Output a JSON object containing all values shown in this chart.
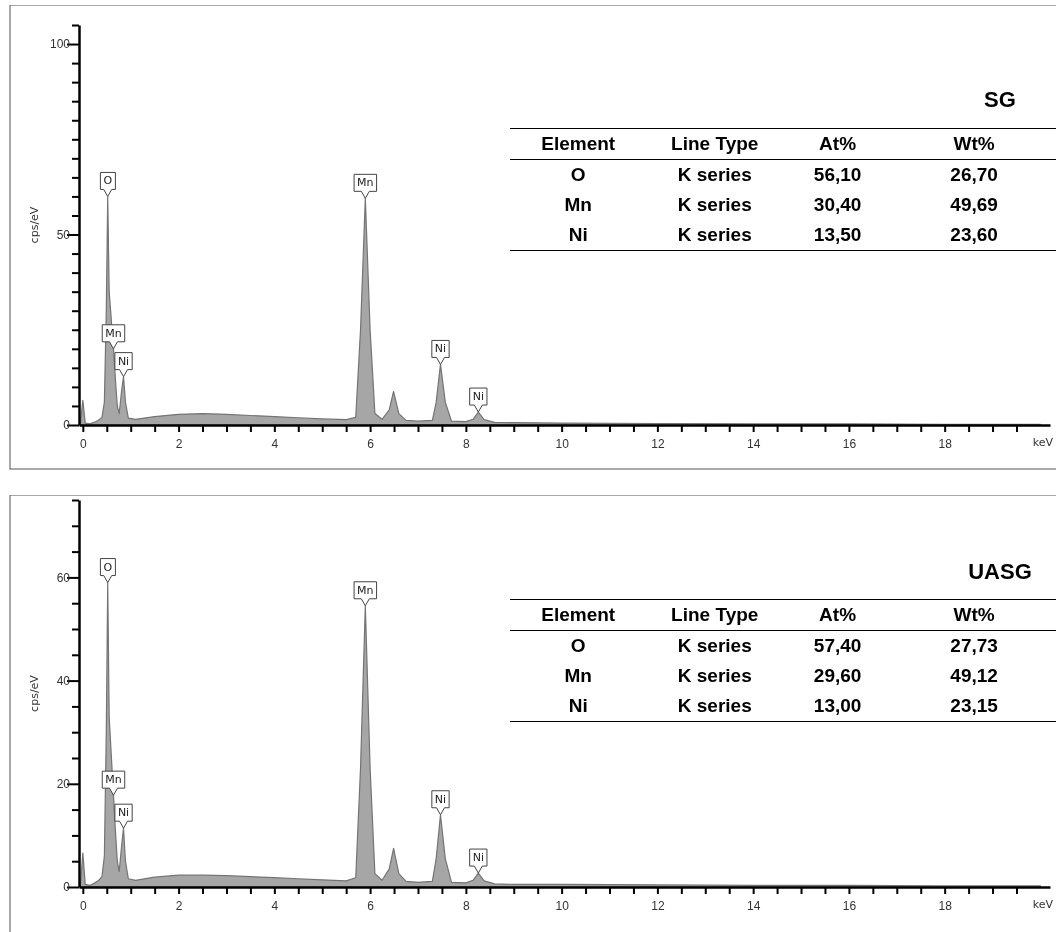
{
  "chart_data": [
    {
      "type": "area",
      "title": "SG",
      "ylabel": "cps/eV",
      "xlabel": "keV",
      "xlim": [
        -0.08,
        20.2
      ],
      "ylim": [
        0,
        105
      ],
      "xticks": [
        0,
        {
          "value": 0.5,
          "label": null
        },
        {
          "value": 1,
          "label": null
        },
        {
          "value": 1.5,
          "label": null
        },
        2,
        {
          "value": 2.5,
          "label": null
        },
        {
          "value": 3,
          "label": null
        },
        {
          "value": 3.5,
          "label": null
        },
        4,
        {
          "value": 4.5,
          "label": null
        },
        {
          "value": 5,
          "label": null
        },
        {
          "value": 5.5,
          "label": null
        },
        6,
        {
          "value": 6.5,
          "label": null
        },
        {
          "value": 7,
          "label": null
        },
        {
          "value": 7.5,
          "label": null
        },
        8,
        {
          "value": 8.5,
          "label": null
        },
        {
          "value": 9,
          "label": null
        },
        {
          "value": 9.5,
          "label": null
        },
        10,
        {
          "value": 10.5,
          "label": null
        },
        {
          "value": 11,
          "label": null
        },
        {
          "value": 11.5,
          "label": null
        },
        12,
        {
          "value": 12.5,
          "label": null
        },
        {
          "value": 13,
          "label": null
        },
        {
          "value": 13.5,
          "label": null
        },
        14,
        {
          "value": 14.5,
          "label": null
        },
        {
          "value": 15,
          "label": null
        },
        {
          "value": 15.5,
          "label": null
        },
        16,
        {
          "value": 16.5,
          "label": null
        },
        {
          "value": 17,
          "label": null
        },
        {
          "value": 17.5,
          "label": null
        },
        18,
        {
          "value": 18.5,
          "label": null
        },
        {
          "value": 19,
          "label": null
        },
        {
          "value": 19.5,
          "label": null
        }
      ],
      "yticks": [
        0,
        {
          "value": 5,
          "label": null
        },
        {
          "value": 10,
          "label": null
        },
        {
          "value": 15,
          "label": null
        },
        {
          "value": 20,
          "label": null
        },
        {
          "value": 25,
          "label": null
        },
        {
          "value": 30,
          "label": null
        },
        {
          "value": 35,
          "label": null
        },
        {
          "value": 40,
          "label": null
        },
        {
          "value": 45,
          "label": null
        },
        50,
        {
          "value": 55,
          "label": null
        },
        {
          "value": 60,
          "label": null
        },
        {
          "value": 65,
          "label": null
        },
        {
          "value": 70,
          "label": null
        },
        {
          "value": 75,
          "label": null
        },
        {
          "value": 80,
          "label": null
        },
        {
          "value": 85,
          "label": null
        },
        {
          "value": 90,
          "label": null
        },
        {
          "value": 95,
          "label": null
        },
        100,
        {
          "value": 105,
          "label": null
        }
      ],
      "grid": false,
      "series": [
        {
          "color": "#a6a6a6",
          "x": [
            -0.05,
            0,
            0.05,
            0.15,
            0.25,
            0.32,
            0.4,
            0.45,
            0.49,
            0.52,
            0.55,
            0.64,
            0.68,
            0.72,
            0.76,
            0.81,
            0.85,
            0.89,
            0.95,
            1.1,
            1.5,
            2,
            2.5,
            3,
            3.5,
            4,
            4.5,
            5,
            5.5,
            5.7,
            5.8,
            5.9,
            6,
            6.1,
            6.25,
            6.4,
            6.49,
            6.6,
            6.75,
            7,
            7.3,
            7.38,
            7.47,
            7.57,
            7.7,
            8,
            8.15,
            8.26,
            8.38,
            8.6,
            9,
            10,
            12,
            14,
            16,
            18,
            20
          ],
          "values": [
            0.3,
            6.5,
            0.5,
            0.3,
            0.8,
            1.2,
            2,
            6,
            30,
            60,
            35,
            20,
            12,
            5,
            3,
            9,
            12.7,
            6,
            1.8,
            1.5,
            2.2,
            2.8,
            3,
            2.8,
            2.5,
            2.2,
            1.9,
            1.6,
            1.4,
            2,
            25,
            59.5,
            25,
            3,
            1.5,
            4,
            8.8,
            3,
            1.2,
            1,
            1.2,
            6,
            15.9,
            6,
            1,
            0.9,
            1.5,
            3.4,
            1.4,
            0.7,
            0.6,
            0.5,
            0.4,
            0.3,
            0.3,
            0.2,
            0.2
          ]
        }
      ],
      "annotations": [
        {
          "text": "O",
          "x": 0.52,
          "y": 60
        },
        {
          "text": "Mn",
          "x": 0.64,
          "y": 20
        },
        {
          "text": "Ni",
          "x": 0.85,
          "y": 12.7
        },
        {
          "text": "Mn",
          "x": 5.9,
          "y": 59.5
        },
        {
          "text": "Ni",
          "x": 7.47,
          "y": 15.9
        },
        {
          "text": "Ni",
          "x": 8.26,
          "y": 3.4
        },
        "Element",
        "Line Type",
        "At%",
        "Wt%",
        "O",
        "K series",
        "56,10",
        "26,70",
        "Mn",
        "K series",
        "30,40",
        "49,69",
        "Ni",
        "K series",
        "13,50",
        "23,60"
      ]
    },
    {
      "type": "area",
      "title": "UASG",
      "ylabel": "cps/eV",
      "xlabel": "keV",
      "xlim": [
        -0.08,
        20.2
      ],
      "ylim": [
        0,
        75
      ],
      "xticks": [
        0,
        {
          "value": 0.5,
          "label": null
        },
        {
          "value": 1,
          "label": null
        },
        {
          "value": 1.5,
          "label": null
        },
        2,
        {
          "value": 2.5,
          "label": null
        },
        {
          "value": 3,
          "label": null
        },
        {
          "value": 3.5,
          "label": null
        },
        4,
        {
          "value": 4.5,
          "label": null
        },
        {
          "value": 5,
          "label": null
        },
        {
          "value": 5.5,
          "label": null
        },
        6,
        {
          "value": 6.5,
          "label": null
        },
        {
          "value": 7,
          "label": null
        },
        {
          "value": 7.5,
          "label": null
        },
        8,
        {
          "value": 8.5,
          "label": null
        },
        {
          "value": 9,
          "label": null
        },
        {
          "value": 9.5,
          "label": null
        },
        10,
        {
          "value": 10.5,
          "label": null
        },
        {
          "value": 11,
          "label": null
        },
        {
          "value": 11.5,
          "label": null
        },
        12,
        {
          "value": 12.5,
          "label": null
        },
        {
          "value": 13,
          "label": null
        },
        {
          "value": 13.5,
          "label": null
        },
        14,
        {
          "value": 14.5,
          "label": null
        },
        {
          "value": 15,
          "label": null
        },
        {
          "value": 15.5,
          "label": null
        },
        16,
        {
          "value": 16.5,
          "label": null
        },
        {
          "value": 17,
          "label": null
        },
        {
          "value": 17.5,
          "label": null
        },
        18,
        {
          "value": 18.5,
          "label": null
        },
        {
          "value": 19,
          "label": null
        },
        {
          "value": 19.5,
          "label": null
        }
      ],
      "yticks": [
        0,
        {
          "value": 5,
          "label": null
        },
        {
          "value": 10,
          "label": null
        },
        {
          "value": 15,
          "label": null
        },
        20,
        {
          "value": 25,
          "label": null
        },
        {
          "value": 30,
          "label": null
        },
        {
          "value": 35,
          "label": null
        },
        40,
        {
          "value": 45,
          "label": null
        },
        {
          "value": 50,
          "label": null
        },
        {
          "value": 55,
          "label": null
        },
        60,
        {
          "value": 65,
          "label": null
        },
        {
          "value": 70,
          "label": null
        },
        {
          "value": 75,
          "label": null
        }
      ],
      "grid": false,
      "series": [
        {
          "color": "#a6a6a6",
          "x": [
            -0.05,
            0,
            0.05,
            0.15,
            0.25,
            0.32,
            0.4,
            0.45,
            0.49,
            0.52,
            0.55,
            0.64,
            0.68,
            0.72,
            0.76,
            0.81,
            0.85,
            0.89,
            0.95,
            1.1,
            1.5,
            2,
            2.5,
            3,
            3.5,
            4,
            4.5,
            5,
            5.5,
            5.7,
            5.8,
            5.9,
            6,
            6.1,
            6.25,
            6.4,
            6.49,
            6.6,
            6.75,
            7,
            7.3,
            7.38,
            7.47,
            7.57,
            7.7,
            8,
            8.15,
            8.26,
            8.38,
            8.6,
            9,
            10,
            12,
            14,
            16,
            18,
            20
          ],
          "values": [
            0.3,
            6.6,
            0.5,
            0.3,
            0.8,
            1.2,
            2,
            6,
            30,
            59,
            33,
            17.8,
            11,
            5,
            3,
            8,
            11.4,
            5,
            1.6,
            1.3,
            1.9,
            2.3,
            2.3,
            2.2,
            2,
            1.8,
            1.6,
            1.4,
            1.2,
            1.8,
            23,
            54.5,
            23,
            2.6,
            1.3,
            3.5,
            7.5,
            2.6,
            1.1,
            0.9,
            1.1,
            5.5,
            14,
            5.5,
            0.9,
            0.8,
            1.3,
            2.7,
            1.2,
            0.6,
            0.5,
            0.5,
            0.4,
            0.3,
            0.3,
            0.2,
            0.2
          ]
        }
      ],
      "annotations": [
        {
          "text": "O",
          "x": 0.52,
          "y": 59
        },
        {
          "text": "Mn",
          "x": 0.64,
          "y": 17.8
        },
        {
          "text": "Ni",
          "x": 0.85,
          "y": 11.4
        },
        {
          "text": "Mn",
          "x": 5.9,
          "y": 54.5
        },
        {
          "text": "Ni",
          "x": 7.47,
          "y": 14
        },
        {
          "text": "Ni",
          "x": 8.26,
          "y": 2.7
        },
        "Element",
        "Line Type",
        "At%",
        "Wt%",
        "O",
        "K series",
        "57,40",
        "27,73",
        "Mn",
        "K series",
        "29,60",
        "49,12",
        "Ni",
        "K series",
        "13,00",
        "23,15"
      ]
    }
  ]
}
